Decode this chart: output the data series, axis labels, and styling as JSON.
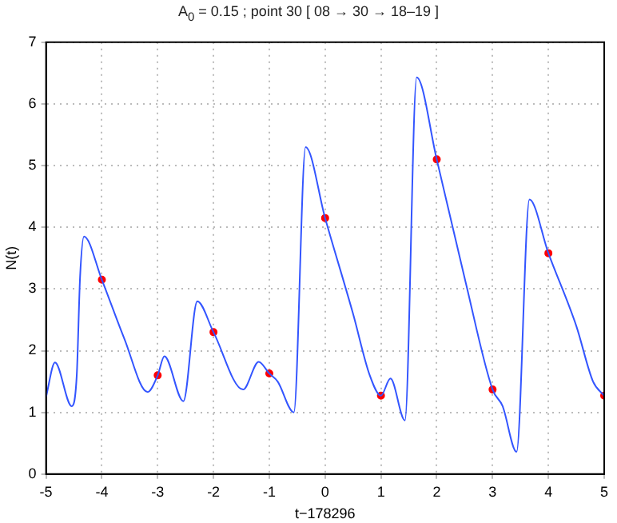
{
  "chart_data": {
    "type": "line",
    "title": "A$_{0}$ = 0.15 ; point 30 [ 08 → 30 → 18–19 ]",
    "xlabel": "t−178296",
    "ylabel": "N(t)",
    "xlim": [
      -5,
      5
    ],
    "xticks": [
      -5,
      -4,
      -3,
      -2,
      -1,
      0,
      1,
      2,
      3,
      4,
      5
    ],
    "ylim": [
      0,
      7
    ],
    "yticks": [
      0,
      1,
      2,
      3,
      4,
      5,
      6,
      7
    ],
    "grid": true,
    "legend": false,
    "series": [
      {
        "color": "#3355ff",
        "marker": "none",
        "x": [
          -5,
          -4.84,
          -4.54,
          -4.45,
          -4.39,
          -4.32,
          -4,
          -3.6,
          -3.18,
          -3,
          -2.88,
          -2.54,
          -2.29,
          -2,
          -1.47,
          -1.19,
          -1,
          -0.85,
          -0.56,
          -0.35,
          0,
          0.5,
          0.8,
          1,
          1.17,
          1.43,
          1.64,
          2,
          2.52,
          3,
          3.18,
          3.43,
          3.66,
          4,
          4.5,
          4.8,
          5
        ],
        "values": [
          1.25,
          1.81,
          1.1,
          1.6,
          3.2,
          3.85,
          3.15,
          2.2,
          1.33,
          1.6,
          1.91,
          1.18,
          2.8,
          2.3,
          1.37,
          1.82,
          1.63,
          1.5,
          1.0,
          5.3,
          4.15,
          2.6,
          1.6,
          1.27,
          1.55,
          0.87,
          6.43,
          5.1,
          3.1,
          1.37,
          1.1,
          0.36,
          4.45,
          3.58,
          2.4,
          1.5,
          1.27
        ]
      },
      {
        "type": "scatter",
        "color": "#ff0000",
        "marker": "circle",
        "x": [
          -4,
          -3,
          -2,
          -1,
          0,
          1,
          2,
          3,
          4,
          5
        ],
        "values": [
          3.15,
          1.6,
          2.3,
          1.63,
          4.15,
          1.27,
          5.1,
          1.37,
          3.58,
          1.27
        ]
      }
    ]
  }
}
